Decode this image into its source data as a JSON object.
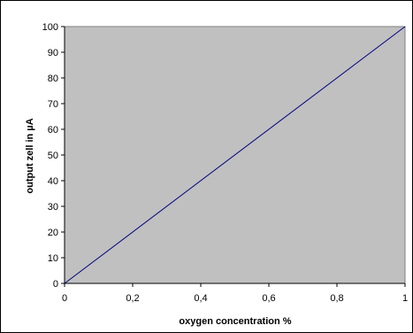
{
  "chart_data": {
    "type": "line",
    "title": "",
    "xlabel": "oxygen concentration %",
    "ylabel": "output zell in µA",
    "xlim": [
      0,
      1
    ],
    "ylim": [
      0,
      100
    ],
    "x_ticks": [
      0,
      0.2,
      0.4,
      0.6,
      0.8,
      1
    ],
    "x_tick_labels": [
      "0",
      "0,2",
      "0,4",
      "0,6",
      "0,8",
      "1"
    ],
    "y_ticks": [
      0,
      10,
      20,
      30,
      40,
      50,
      60,
      70,
      80,
      90,
      100
    ],
    "y_tick_labels": [
      "0",
      "10",
      "20",
      "30",
      "40",
      "50",
      "60",
      "70",
      "80",
      "90",
      "100"
    ],
    "grid": false,
    "legend": "none",
    "plot_background": "#c0c0c0",
    "series": [
      {
        "color": "#000080",
        "x": [
          0,
          1
        ],
        "y": [
          0,
          100
        ]
      }
    ]
  }
}
